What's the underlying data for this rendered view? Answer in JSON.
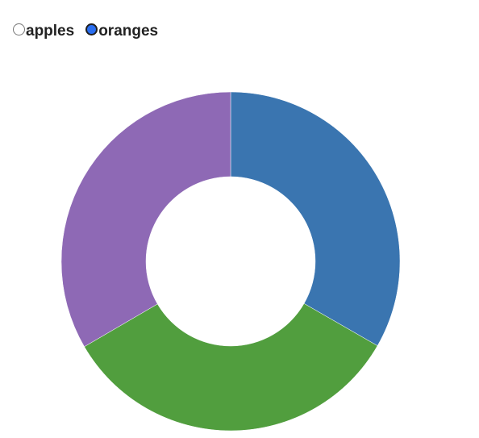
{
  "controls": {
    "options": [
      {
        "label": "apples",
        "checked": false
      },
      {
        "label": "oranges",
        "checked": true
      }
    ]
  },
  "chart_data": {
    "type": "pie",
    "variant": "donut",
    "categories": [
      "",
      "",
      ""
    ],
    "values": [
      33.3,
      33.3,
      33.4
    ],
    "colors": [
      "#3a75b0",
      "#519e3e",
      "#8e69b5"
    ],
    "legend": "none"
  }
}
